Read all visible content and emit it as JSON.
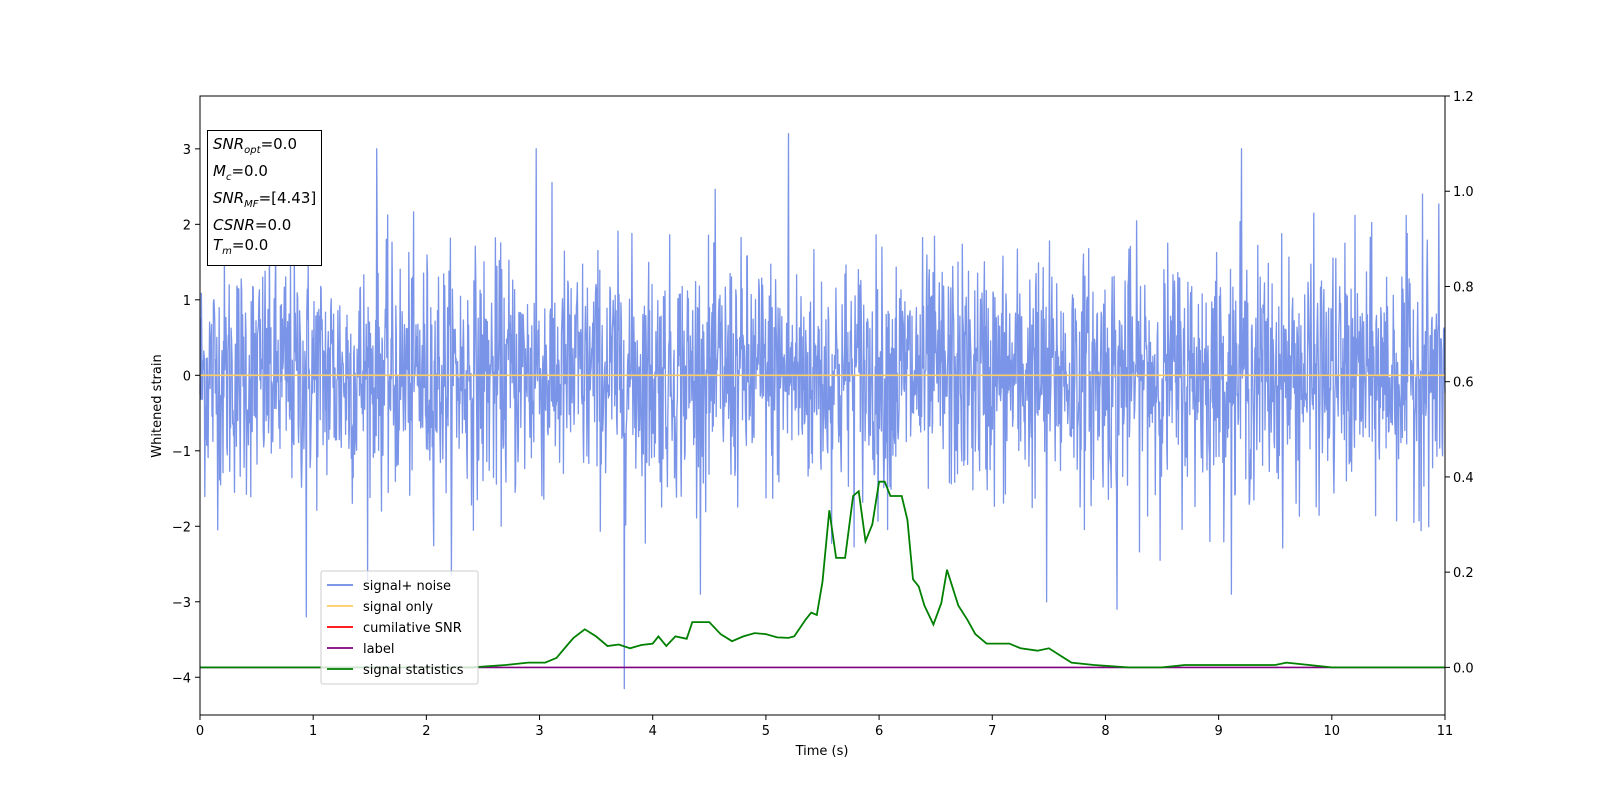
{
  "chart_data": {
    "type": "line",
    "title": "",
    "xlabel": "Time (s)",
    "ylabel": "Whitened strain",
    "xlim": [
      0,
      11
    ],
    "ylim": [
      -4.5,
      3.7
    ],
    "y2lim": [
      -0.1,
      1.2
    ],
    "x_ticks": [
      "0",
      "1",
      "2",
      "3",
      "4",
      "5",
      "6",
      "7",
      "8",
      "9",
      "10",
      "11"
    ],
    "y_ticks": [
      "3",
      "2",
      "1",
      "0",
      "−1",
      "−2",
      "−3",
      "−4"
    ],
    "y2_ticks": [
      "1.2",
      "1.0",
      "0.8",
      "0.6",
      "0.4",
      "0.2",
      "0.0"
    ],
    "grid": false,
    "legend_position": "lower-left",
    "legend": [
      {
        "name": "signal+ noise",
        "color": "#6b89e6"
      },
      {
        "name": "signal only",
        "color": "#ffcc66"
      },
      {
        "name": "cumilative SNR",
        "color": "#ff0000"
      },
      {
        "name": "label",
        "color": "#800080"
      },
      {
        "name": "signal statistics",
        "color": "#008000"
      }
    ],
    "series": [
      {
        "name": "signal+ noise",
        "color": "#7a94e8",
        "axis": "left",
        "description_type": "noise",
        "y_range_typical": [
          -2.0,
          2.3
        ],
        "notable_extremes": [
          {
            "x": 3.75,
            "y": -4.15
          },
          {
            "x": 5.2,
            "y": 3.2
          },
          {
            "x": 2.97,
            "y": 3.0
          },
          {
            "x": 1.56,
            "y": 3.0
          },
          {
            "x": 0.94,
            "y": -3.2
          },
          {
            "x": 7.48,
            "y": -3.0
          },
          {
            "x": 8.1,
            "y": -3.1
          },
          {
            "x": 9.2,
            "y": 3.0
          },
          {
            "x": 10.8,
            "y": 2.4
          }
        ]
      },
      {
        "name": "signal only",
        "color": "#ffcc66",
        "axis": "left",
        "x": [
          0,
          11
        ],
        "y": [
          0,
          0
        ]
      },
      {
        "name": "label",
        "color": "#800080",
        "axis": "right",
        "x": [
          0,
          11
        ],
        "y": [
          0,
          0
        ]
      },
      {
        "name": "signal statistics",
        "color": "#008000",
        "axis": "right",
        "x": [
          0,
          0.3,
          0.5,
          1.0,
          1.5,
          2.0,
          2.4,
          2.7,
          2.9,
          3.05,
          3.15,
          3.25,
          3.3,
          3.4,
          3.5,
          3.6,
          3.7,
          3.8,
          3.9,
          4.0,
          4.05,
          4.12,
          4.2,
          4.3,
          4.35,
          4.5,
          4.6,
          4.7,
          4.8,
          4.9,
          5.0,
          5.1,
          5.2,
          5.25,
          5.35,
          5.4,
          5.45,
          5.5,
          5.56,
          5.62,
          5.7,
          5.77,
          5.82,
          5.88,
          5.94,
          6.0,
          6.05,
          6.1,
          6.2,
          6.25,
          6.3,
          6.35,
          6.4,
          6.48,
          6.55,
          6.6,
          6.7,
          6.78,
          6.85,
          6.95,
          7.05,
          7.15,
          7.25,
          7.4,
          7.5,
          7.6,
          7.7,
          7.9,
          8.2,
          8.5,
          8.7,
          9.0,
          9.2,
          9.5,
          9.6,
          9.8,
          10.0,
          10.5,
          11.0
        ],
        "y": [
          0.0,
          0.0,
          0.0,
          0.0,
          0.0,
          0.0,
          0.0,
          0.005,
          0.01,
          0.01,
          0.02,
          0.048,
          0.062,
          0.08,
          0.065,
          0.045,
          0.048,
          0.04,
          0.047,
          0.05,
          0.065,
          0.045,
          0.065,
          0.06,
          0.095,
          0.095,
          0.07,
          0.055,
          0.065,
          0.072,
          0.07,
          0.063,
          0.062,
          0.065,
          0.1,
          0.115,
          0.11,
          0.18,
          0.33,
          0.23,
          0.23,
          0.36,
          0.37,
          0.265,
          0.3,
          0.39,
          0.39,
          0.36,
          0.36,
          0.31,
          0.185,
          0.17,
          0.13,
          0.09,
          0.135,
          0.205,
          0.13,
          0.1,
          0.07,
          0.05,
          0.05,
          0.05,
          0.04,
          0.035,
          0.04,
          0.025,
          0.01,
          0.005,
          0.0,
          0.0,
          0.005,
          0.005,
          0.005,
          0.005,
          0.01,
          0.005,
          0.0,
          0.0,
          0.0
        ]
      }
    ]
  },
  "info_box": {
    "snr_opt": {
      "sym": "SNR",
      "sub": "opt",
      "val": "=0.0"
    },
    "mc": {
      "sym": "M",
      "sub": "c",
      "val": "=0.0"
    },
    "snr_mf": {
      "sym": "SNR",
      "sub": "MF",
      "val": "=[4.43]"
    },
    "csnr": {
      "sym": "CSNR",
      "val": "=0.0"
    },
    "tm": {
      "sym": "T",
      "sub": "m",
      "val": "=0.0"
    }
  }
}
